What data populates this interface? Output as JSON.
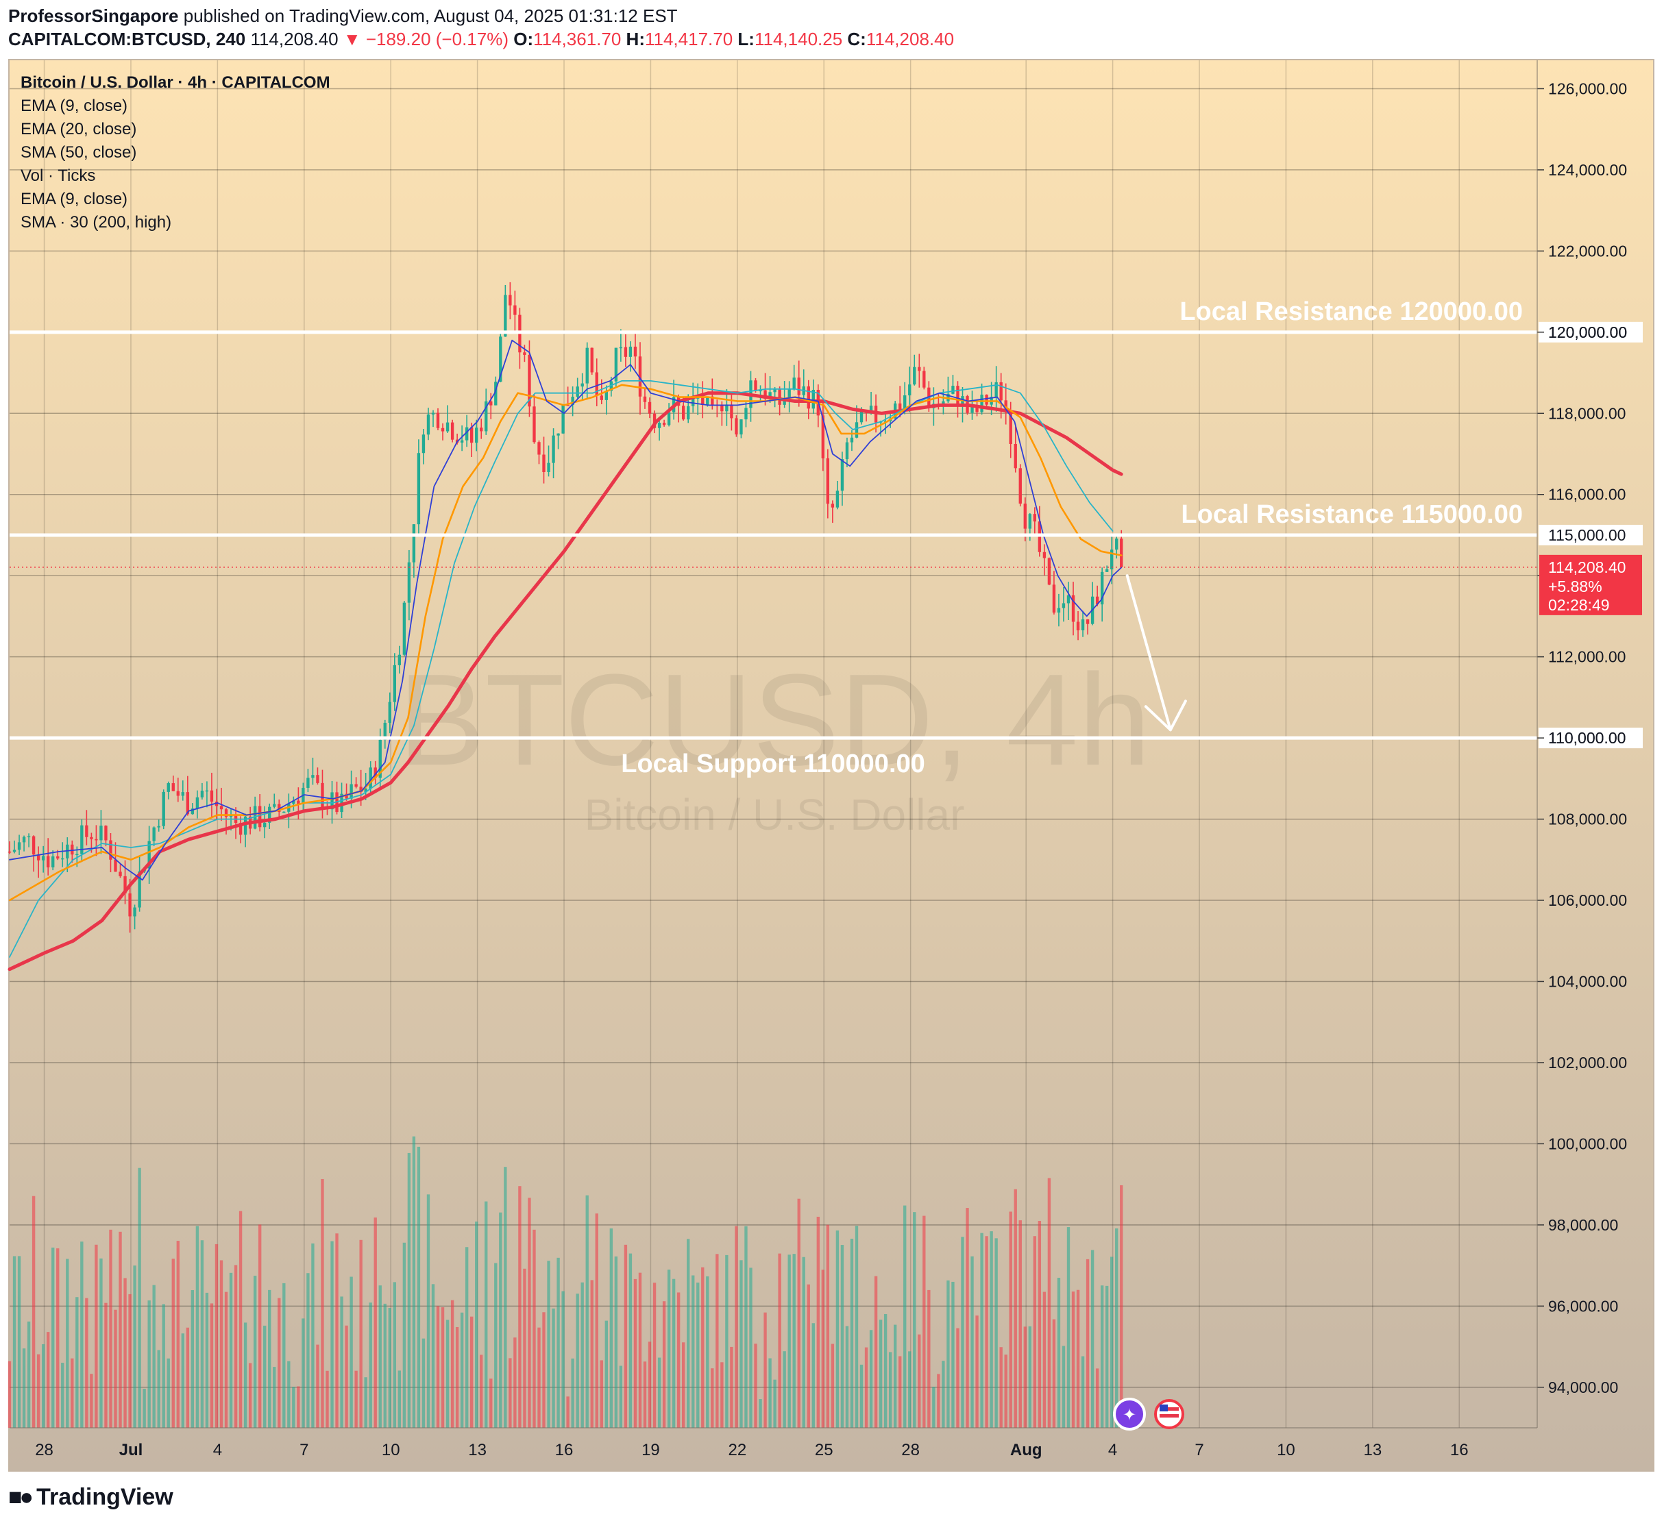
{
  "header": {
    "author": "ProfessorSingapore",
    "published": "published on TradingView.com, August 04, 2025 01:31:12 EST",
    "symbol": "CAPITALCOM:BTCUSD, 240",
    "last": "114,208.40",
    "change": "▼ −189.20 (−0.17%)",
    "open_label": "O:",
    "open": "114,361.70",
    "high_label": "H:",
    "high": "114,417.70",
    "low_label": "L:",
    "low": "114,140.25",
    "close_label": "C:",
    "close": "114,208.40"
  },
  "legend": [
    "Bitcoin / U.S. Dollar · 4h · CAPITALCOM",
    "EMA (9, close)",
    "EMA (20, close)",
    "SMA (50, close)",
    "Vol · Ticks",
    "EMA (9, close)",
    "SMA · 30 (200, high)"
  ],
  "watermark": {
    "main": "BTCUSD, 4h",
    "sub": "Bitcoin / U.S. Dollar"
  },
  "annotations": {
    "r120": "Local Resistance 120000.00",
    "r115": "Local Resistance 115000.00",
    "s110": "Local Support 110000.00"
  },
  "price_tag": {
    "price": "114,208.40",
    "pct": "+5.88%",
    "timer": "02:28:49"
  },
  "level_labels": {
    "r120": "120,000.00",
    "r115": "115,000.00",
    "s110": "110,000.00"
  },
  "footer": {
    "brand": "TradingView"
  },
  "colors": {
    "bg_top": "#fde3b4",
    "bg_bottom": "#c5b6a5",
    "up": "#22ab94",
    "down": "#f23645",
    "ema9": "#2f3fd6",
    "ema20": "#ff9800",
    "sma50": "#28b4c8",
    "sma200": "#e8364a",
    "level": "#ffffff"
  },
  "chart_data": {
    "type": "candlestick",
    "symbol": "CAPITALCOM:BTCUSD",
    "timeframe": "4h",
    "y_range": [
      93000,
      126700
    ],
    "y_ticks": [
      126000,
      124000,
      122000,
      120000,
      118000,
      116000,
      114000,
      112000,
      110000,
      108000,
      106000,
      104000,
      102000,
      100000,
      98000,
      96000,
      94000
    ],
    "x_ticks": [
      {
        "label": "28",
        "day": -2
      },
      {
        "label": "Jul",
        "day": 1
      },
      {
        "label": "4",
        "day": 4
      },
      {
        "label": "7",
        "day": 7
      },
      {
        "label": "10",
        "day": 10
      },
      {
        "label": "13",
        "day": 13
      },
      {
        "label": "16",
        "day": 16
      },
      {
        "label": "19",
        "day": 19
      },
      {
        "label": "22",
        "day": 22
      },
      {
        "label": "25",
        "day": 25
      },
      {
        "label": "28",
        "day": 28
      },
      {
        "label": "Aug",
        "day": 32
      },
      {
        "label": "4",
        "day": 35
      },
      {
        "label": "7",
        "day": 38
      },
      {
        "label": "10",
        "day": 41
      },
      {
        "label": "13",
        "day": 44
      },
      {
        "label": "16",
        "day": 47
      }
    ],
    "x_range_days": [
      -3.2,
      49.7
    ],
    "close_path": [
      [
        -3.2,
        107200
      ],
      [
        -2.6,
        107500
      ],
      [
        -1.8,
        107000
      ],
      [
        -1,
        107400
      ],
      [
        -0.3,
        107700
      ],
      [
        0.2,
        107400
      ],
      [
        0.6,
        106600
      ],
      [
        1.0,
        105800
      ],
      [
        1.3,
        106600
      ],
      [
        1.7,
        107600
      ],
      [
        2.3,
        108800
      ],
      [
        3.0,
        108400
      ],
      [
        3.5,
        108700
      ],
      [
        4.0,
        108300
      ],
      [
        4.6,
        107900
      ],
      [
        5.3,
        108000
      ],
      [
        6.0,
        108100
      ],
      [
        6.6,
        108500
      ],
      [
        7.2,
        108900
      ],
      [
        7.8,
        108400
      ],
      [
        8.3,
        108300
      ],
      [
        8.7,
        108700
      ],
      [
        9.2,
        108800
      ],
      [
        9.6,
        109600
      ],
      [
        10.0,
        111200
      ],
      [
        10.4,
        112800
      ],
      [
        10.8,
        115500
      ],
      [
        11.1,
        117800
      ],
      [
        11.6,
        118000
      ],
      [
        12.2,
        117600
      ],
      [
        12.8,
        117300
      ],
      [
        13.3,
        118100
      ],
      [
        13.7,
        119000
      ],
      [
        14.0,
        121200
      ],
      [
        14.3,
        120100
      ],
      [
        14.7,
        119000
      ],
      [
        15.0,
        117200
      ],
      [
        15.4,
        116800
      ],
      [
        15.9,
        118000
      ],
      [
        16.3,
        118600
      ],
      [
        16.8,
        119300
      ],
      [
        17.3,
        118000
      ],
      [
        17.8,
        119300
      ],
      [
        18.3,
        119600
      ],
      [
        18.8,
        118300
      ],
      [
        19.2,
        117800
      ],
      [
        19.7,
        118200
      ],
      [
        20.2,
        118000
      ],
      [
        20.7,
        118400
      ],
      [
        21.2,
        117800
      ],
      [
        21.6,
        118600
      ],
      [
        22.0,
        117200
      ],
      [
        22.4,
        118800
      ],
      [
        22.9,
        118600
      ],
      [
        23.4,
        118200
      ],
      [
        23.9,
        118700
      ],
      [
        24.4,
        118500
      ],
      [
        24.8,
        118200
      ],
      [
        25.1,
        115500
      ],
      [
        25.4,
        115700
      ],
      [
        25.8,
        117200
      ],
      [
        26.2,
        117700
      ],
      [
        26.7,
        117900
      ],
      [
        27.2,
        118000
      ],
      [
        27.7,
        118300
      ],
      [
        28.2,
        119100
      ],
      [
        28.7,
        118200
      ],
      [
        29.1,
        118300
      ],
      [
        29.6,
        118500
      ],
      [
        30.1,
        117900
      ],
      [
        30.6,
        118300
      ],
      [
        31.1,
        118600
      ],
      [
        31.5,
        117500
      ],
      [
        31.9,
        115600
      ],
      [
        32.3,
        115000
      ],
      [
        32.6,
        114200
      ],
      [
        32.9,
        113200
      ],
      [
        33.2,
        113500
      ],
      [
        33.6,
        113200
      ],
      [
        34.0,
        112600
      ],
      [
        34.4,
        113400
      ],
      [
        34.7,
        114000
      ],
      [
        35.0,
        114900
      ],
      [
        35.3,
        114200
      ]
    ],
    "ema9_path": [
      [
        -3.2,
        107000
      ],
      [
        -1.5,
        107200
      ],
      [
        0,
        107300
      ],
      [
        0.8,
        106800
      ],
      [
        1.4,
        106500
      ],
      [
        2.2,
        107400
      ],
      [
        3.0,
        108200
      ],
      [
        4.0,
        108400
      ],
      [
        5.0,
        108100
      ],
      [
        6.0,
        108200
      ],
      [
        7.0,
        108600
      ],
      [
        8.0,
        108500
      ],
      [
        9.0,
        108700
      ],
      [
        9.8,
        109400
      ],
      [
        10.4,
        111400
      ],
      [
        10.9,
        113800
      ],
      [
        11.5,
        116200
      ],
      [
        12.3,
        117300
      ],
      [
        13.0,
        117800
      ],
      [
        13.6,
        118500
      ],
      [
        14.2,
        119800
      ],
      [
        14.8,
        119500
      ],
      [
        15.4,
        118300
      ],
      [
        16.0,
        118000
      ],
      [
        16.8,
        118600
      ],
      [
        17.6,
        118800
      ],
      [
        18.3,
        119200
      ],
      [
        19.0,
        118500
      ],
      [
        20.0,
        118300
      ],
      [
        21.0,
        118200
      ],
      [
        22.0,
        118200
      ],
      [
        23.0,
        118300
      ],
      [
        24.0,
        118400
      ],
      [
        24.8,
        118300
      ],
      [
        25.3,
        117000
      ],
      [
        25.9,
        116700
      ],
      [
        26.6,
        117300
      ],
      [
        27.4,
        117800
      ],
      [
        28.2,
        118300
      ],
      [
        29.0,
        118500
      ],
      [
        30.0,
        118300
      ],
      [
        31.0,
        118400
      ],
      [
        31.6,
        117800
      ],
      [
        32.1,
        116400
      ],
      [
        32.6,
        115000
      ],
      [
        33.1,
        114000
      ],
      [
        33.6,
        113400
      ],
      [
        34.1,
        113000
      ],
      [
        34.6,
        113400
      ],
      [
        35.0,
        114000
      ],
      [
        35.3,
        114200
      ]
    ],
    "ema20_path": [
      [
        -3.2,
        106000
      ],
      [
        -1.5,
        106700
      ],
      [
        0,
        107200
      ],
      [
        1.0,
        107000
      ],
      [
        2.0,
        107300
      ],
      [
        3.0,
        107800
      ],
      [
        4.0,
        108100
      ],
      [
        5.0,
        108100
      ],
      [
        6.0,
        108200
      ],
      [
        7.0,
        108400
      ],
      [
        8.0,
        108500
      ],
      [
        9.0,
        108700
      ],
      [
        10.0,
        109400
      ],
      [
        10.6,
        110500
      ],
      [
        11.2,
        113000
      ],
      [
        11.8,
        114900
      ],
      [
        12.5,
        116200
      ],
      [
        13.2,
        116900
      ],
      [
        13.8,
        117800
      ],
      [
        14.4,
        118500
      ],
      [
        15.0,
        118400
      ],
      [
        16.0,
        118200
      ],
      [
        17.0,
        118400
      ],
      [
        18.0,
        118700
      ],
      [
        19.0,
        118600
      ],
      [
        20.0,
        118400
      ],
      [
        21.0,
        118400
      ],
      [
        22.0,
        118300
      ],
      [
        23.0,
        118300
      ],
      [
        24.0,
        118400
      ],
      [
        25.0,
        118200
      ],
      [
        25.6,
        117500
      ],
      [
        26.4,
        117500
      ],
      [
        27.2,
        117800
      ],
      [
        28.0,
        118200
      ],
      [
        29.0,
        118400
      ],
      [
        30.0,
        118300
      ],
      [
        31.0,
        118300
      ],
      [
        31.8,
        117900
      ],
      [
        32.5,
        116900
      ],
      [
        33.2,
        115700
      ],
      [
        33.9,
        114900
      ],
      [
        34.6,
        114600
      ],
      [
        35.3,
        114500
      ]
    ],
    "sma50_path": [
      [
        -3.2,
        104600
      ],
      [
        -2.2,
        106000
      ],
      [
        -1.0,
        107000
      ],
      [
        0,
        107400
      ],
      [
        1.0,
        107300
      ],
      [
        2.0,
        107400
      ],
      [
        3.0,
        107700
      ],
      [
        4.0,
        108000
      ],
      [
        5.0,
        108000
      ],
      [
        6.0,
        108200
      ],
      [
        7.0,
        108400
      ],
      [
        8.0,
        108400
      ],
      [
        9.0,
        108600
      ],
      [
        10.0,
        109100
      ],
      [
        10.8,
        110300
      ],
      [
        11.5,
        112200
      ],
      [
        12.2,
        114300
      ],
      [
        12.9,
        115700
      ],
      [
        13.6,
        116800
      ],
      [
        14.4,
        118000
      ],
      [
        15.0,
        118500
      ],
      [
        16.0,
        118500
      ],
      [
        17.0,
        118500
      ],
      [
        18.0,
        118800
      ],
      [
        19.0,
        118800
      ],
      [
        20.0,
        118700
      ],
      [
        21.0,
        118600
      ],
      [
        22.0,
        118500
      ],
      [
        23.0,
        118600
      ],
      [
        24.0,
        118600
      ],
      [
        24.8,
        118500
      ],
      [
        25.4,
        118000
      ],
      [
        26.0,
        117600
      ],
      [
        27.0,
        117800
      ],
      [
        28.0,
        118200
      ],
      [
        29.0,
        118500
      ],
      [
        30.0,
        118600
      ],
      [
        31.0,
        118700
      ],
      [
        31.8,
        118500
      ],
      [
        32.6,
        117700
      ],
      [
        33.4,
        116700
      ],
      [
        34.2,
        115800
      ],
      [
        35.0,
        115100
      ]
    ],
    "sma200_path": [
      [
        -3.2,
        104300
      ],
      [
        -2.0,
        104700
      ],
      [
        -1.0,
        105000
      ],
      [
        0,
        105500
      ],
      [
        1.0,
        106400
      ],
      [
        2.0,
        107200
      ],
      [
        3.0,
        107500
      ],
      [
        4.0,
        107700
      ],
      [
        5.0,
        107900
      ],
      [
        6.0,
        108000
      ],
      [
        7.0,
        108200
      ],
      [
        8.0,
        108300
      ],
      [
        9.0,
        108500
      ],
      [
        10.0,
        108900
      ],
      [
        10.6,
        109400
      ],
      [
        11.2,
        110000
      ],
      [
        12.0,
        110800
      ],
      [
        12.8,
        111700
      ],
      [
        13.6,
        112500
      ],
      [
        14.4,
        113200
      ],
      [
        15.2,
        113900
      ],
      [
        16.0,
        114600
      ],
      [
        16.8,
        115400
      ],
      [
        17.6,
        116200
      ],
      [
        18.4,
        117000
      ],
      [
        19.2,
        117800
      ],
      [
        20.0,
        118300
      ],
      [
        21.0,
        118500
      ],
      [
        22.0,
        118500
      ],
      [
        23.0,
        118400
      ],
      [
        24.0,
        118300
      ],
      [
        25.0,
        118300
      ],
      [
        26.0,
        118100
      ],
      [
        27.0,
        118000
      ],
      [
        28.0,
        118100
      ],
      [
        29.0,
        118200
      ],
      [
        30.0,
        118200
      ],
      [
        31.0,
        118100
      ],
      [
        31.8,
        118000
      ],
      [
        32.6,
        117700
      ],
      [
        33.4,
        117400
      ],
      [
        34.2,
        117000
      ],
      [
        35.0,
        116600
      ],
      [
        35.3,
        116500
      ]
    ],
    "levels": [
      120000,
      115000,
      110000
    ],
    "last_price": 114208.4,
    "projection": {
      "from": [
        35.5,
        114000
      ],
      "to": [
        37.0,
        110200
      ]
    }
  }
}
